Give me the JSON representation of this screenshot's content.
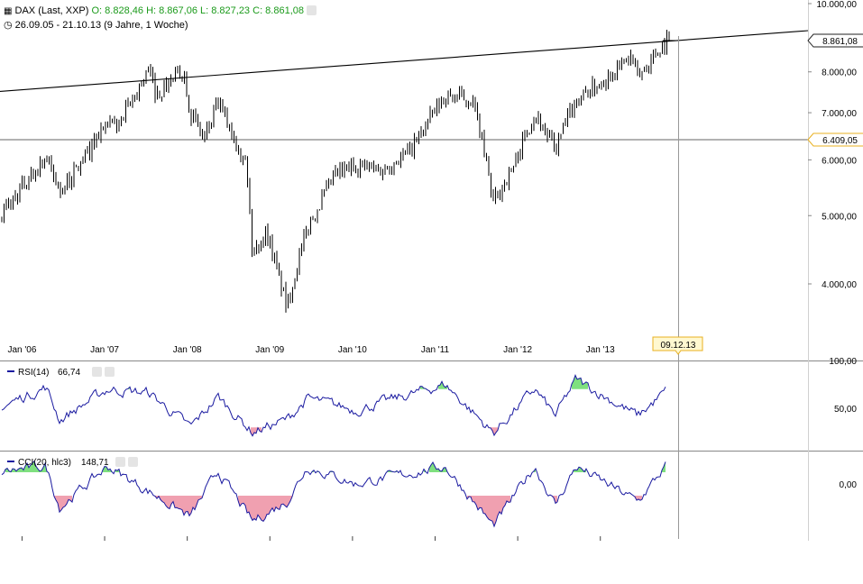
{
  "header": {
    "symbol": "DAX (Last, XXP)",
    "open": "O: 8.828,46",
    "high": "H: 8.867,06",
    "low": "L: 8.827,23",
    "close": "C: 8.861,08",
    "range": "26.09.05 - 21.10.13 (9 Jahre, 1 Woche)"
  },
  "price_axis": {
    "labels": [
      "10.000,00",
      "8.000,00",
      "7.000,00",
      "6.000,00",
      "5.000,00",
      "4.000,00"
    ],
    "values": [
      10000,
      8000,
      7000,
      6000,
      5000,
      4000
    ],
    "current_label": "8.861,08",
    "current_value": 8861.08,
    "hline_label": "6.409,05",
    "hline_value": 6409.05
  },
  "crosshair_date": "09.12.13",
  "rsi": {
    "title": "RSI(14)",
    "value": "66,74",
    "axis_labels": [
      "100,00",
      "50,00"
    ],
    "axis_values": [
      100,
      50
    ]
  },
  "cci": {
    "title": "CCI(20, hlc3)",
    "value": "148,71",
    "axis_labels": [
      "0,00"
    ],
    "axis_values": [
      0
    ]
  },
  "colors": {
    "candle": "#000000",
    "indicator_line": "#1a1aa0",
    "overbought_fill": "#7fe07f",
    "oversold_fill": "#f0a0b0",
    "accent_box": "#e8b020"
  },
  "chart_data": {
    "type": "line",
    "title": "DAX (Last, XXP)",
    "x_axis": {
      "tick_labels": [
        "Jan '06",
        "Jan '07",
        "Jan '08",
        "Jan '09",
        "Jan '10",
        "Jan '11",
        "Jan '12",
        "Jan '13"
      ],
      "range": [
        "2005-09-26",
        "2013-12-09"
      ]
    },
    "y_axis": {
      "scale": "log",
      "range": [
        3500,
        10000
      ]
    },
    "grid": false,
    "series": [
      {
        "name": "DAX",
        "points": [
          [
            "2005-09",
            4950
          ],
          [
            "2005-12",
            5400
          ],
          [
            "2006-04",
            6050
          ],
          [
            "2006-06",
            5400
          ],
          [
            "2006-09",
            5900
          ],
          [
            "2006-12",
            6600
          ],
          [
            "2007-03",
            6800
          ],
          [
            "2007-07",
            8050
          ],
          [
            "2007-08",
            7400
          ],
          [
            "2007-12",
            8050
          ],
          [
            "2008-01",
            7000
          ],
          [
            "2008-03",
            6400
          ],
          [
            "2008-05",
            7200
          ],
          [
            "2008-09",
            6000
          ],
          [
            "2008-10",
            4400
          ],
          [
            "2008-12",
            4750
          ],
          [
            "2009-03",
            3700
          ],
          [
            "2009-06",
            4800
          ],
          [
            "2009-10",
            5700
          ],
          [
            "2010-01",
            5900
          ],
          [
            "2010-05",
            5800
          ],
          [
            "2010-09",
            6200
          ],
          [
            "2011-02",
            7400
          ],
          [
            "2011-06",
            7300
          ],
          [
            "2011-09",
            5200
          ],
          [
            "2011-12",
            5900
          ],
          [
            "2012-03",
            7000
          ],
          [
            "2012-06",
            6200
          ],
          [
            "2012-09",
            7300
          ],
          [
            "2012-12",
            7650
          ],
          [
            "2013-05",
            8400
          ],
          [
            "2013-06",
            7850
          ],
          [
            "2013-09",
            8600
          ],
          [
            "2013-10",
            8861
          ]
        ]
      },
      {
        "name": "RSI(14)",
        "points": [
          [
            "2005-09",
            50
          ],
          [
            "2006-04",
            72
          ],
          [
            "2006-06",
            38
          ],
          [
            "2007-01",
            70
          ],
          [
            "2007-07",
            66
          ],
          [
            "2008-01",
            30
          ],
          [
            "2008-05",
            62
          ],
          [
            "2008-10",
            25
          ],
          [
            "2009-03",
            38
          ],
          [
            "2009-06",
            60
          ],
          [
            "2010-01",
            48
          ],
          [
            "2011-02",
            75
          ],
          [
            "2011-09",
            24
          ],
          [
            "2012-03",
            70
          ],
          [
            "2012-06",
            42
          ],
          [
            "2012-09",
            80
          ],
          [
            "2013-06",
            42
          ],
          [
            "2013-10",
            67
          ]
        ]
      },
      {
        "name": "CCI(20, hlc3)",
        "points": [
          [
            "2005-09",
            100
          ],
          [
            "2006-04",
            150
          ],
          [
            "2006-06",
            -200
          ],
          [
            "2007-01",
            150
          ],
          [
            "2008-01",
            -280
          ],
          [
            "2008-05",
            110
          ],
          [
            "2008-10",
            -320
          ],
          [
            "2009-03",
            -150
          ],
          [
            "2009-06",
            150
          ],
          [
            "2010-01",
            0
          ],
          [
            "2011-02",
            150
          ],
          [
            "2011-09",
            -360
          ],
          [
            "2012-03",
            150
          ],
          [
            "2012-06",
            -180
          ],
          [
            "2012-09",
            150
          ],
          [
            "2013-06",
            -150
          ],
          [
            "2013-10",
            149
          ]
        ]
      }
    ],
    "annotations": [
      {
        "type": "trendline",
        "from": [
          "2005-09",
          7500
        ],
        "to": [
          "2013-12",
          9100
        ]
      },
      {
        "type": "hline",
        "value": 6409.05
      },
      {
        "type": "vline",
        "date": "2013-12-09"
      }
    ]
  }
}
